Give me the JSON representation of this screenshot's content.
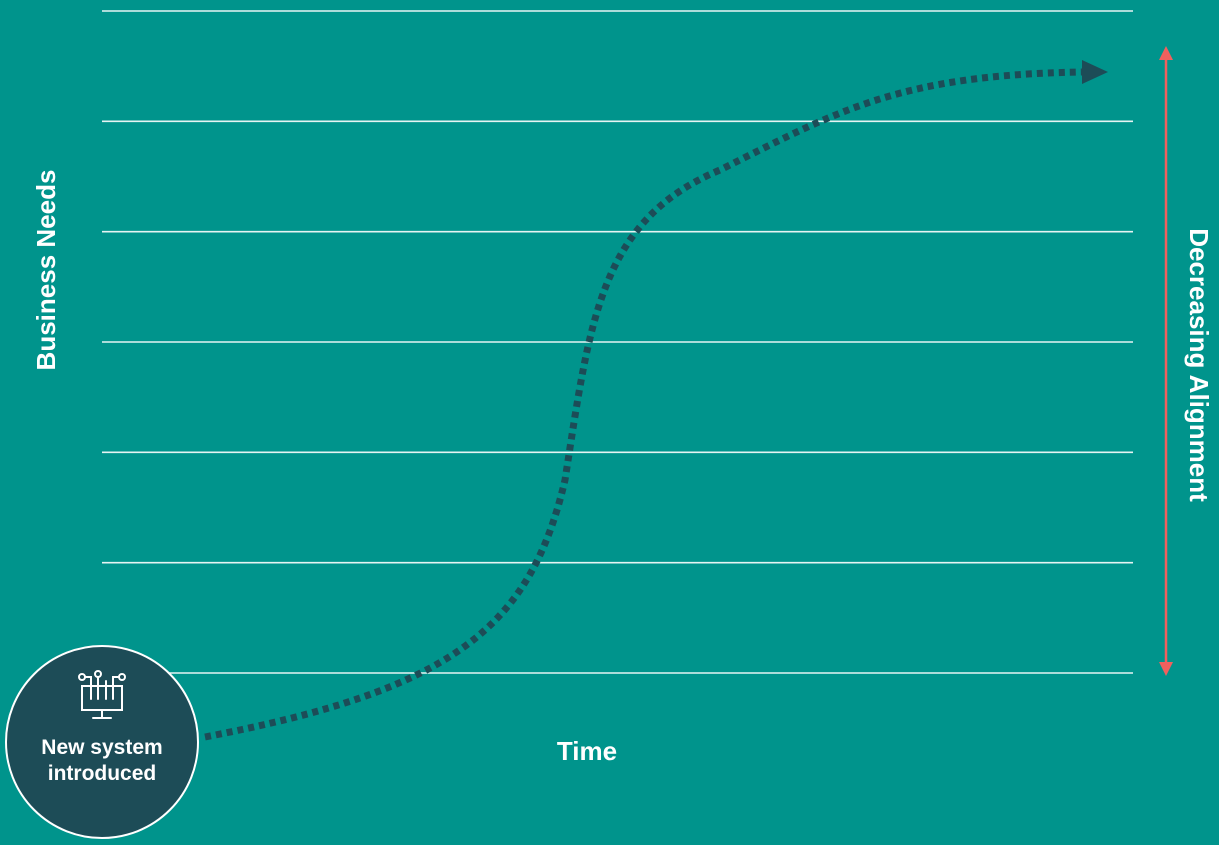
{
  "diagram": {
    "y_axis_label": "Business Needs",
    "x_axis_label": "Time",
    "right_axis_label": "Decreasing Alignment",
    "start_node": {
      "label": "New system introduced",
      "icon": "computer-network-icon"
    },
    "gridline_count": 7
  },
  "colors": {
    "background": "#00948C",
    "gridline": "#E6F4F3",
    "curve": "#1D4C57",
    "node_fill": "#1D4C57",
    "alignment_arrow": "#F0605E",
    "text": "#FFFFFF"
  }
}
